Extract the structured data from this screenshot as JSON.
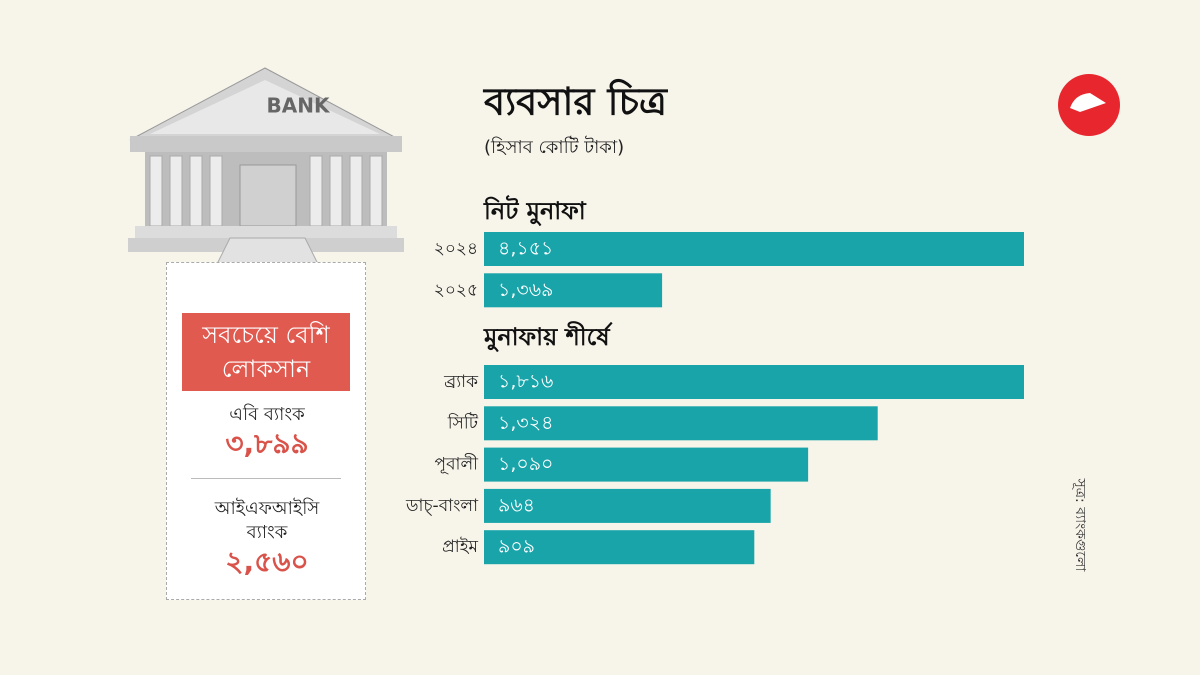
{
  "header": {
    "title": "ব্যবসার চিত্র",
    "subtitle": "(হিসাব কোটি টাকা)"
  },
  "bank_icon_label": "BANK",
  "loss_panel": {
    "title": "সবচেয়ে বেশি লোকসান",
    "items": [
      {
        "name": "এবি ব্যাংক",
        "value": "৩,৮৯৯"
      },
      {
        "name": "আইএফআইসি ব্যাংক",
        "value": "২,৫৬০"
      }
    ]
  },
  "source": "সূত্র: ব্যাংকগুলো",
  "chart_data": [
    {
      "type": "bar",
      "orientation": "horizontal",
      "title": "নিট মুনাফা",
      "color": "#19a4a9",
      "categories": [
        "২০২৪",
        "২০২৫"
      ],
      "values": [
        4151,
        1369
      ],
      "value_labels": [
        "৪,১৫১",
        "১,৩৬৯"
      ]
    },
    {
      "type": "bar",
      "orientation": "horizontal",
      "title": "মুনাফায় শীর্ষে",
      "color": "#19a4a9",
      "categories": [
        "ব্র্যাক",
        "সিটি",
        "পূবালী",
        "ডাচ্-বাংলা",
        "প্রাইম"
      ],
      "values": [
        1816,
        1324,
        1090,
        964,
        909
      ],
      "value_labels": [
        "১,৮১৬",
        "১,৩২৪",
        "১,০৯০",
        "৯৬৪",
        "৯০৯"
      ]
    }
  ]
}
